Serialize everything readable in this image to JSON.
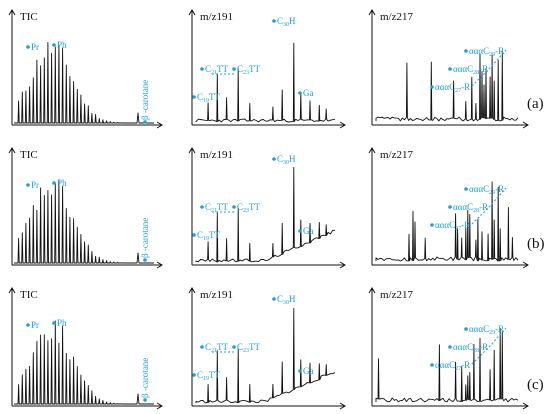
{
  "colors": {
    "annotation": "#1f9fd6",
    "trace": "#111111"
  },
  "chart_data": {
    "type": "line",
    "rows": [
      "(a)",
      "(b)",
      "(c)"
    ],
    "columns": [
      "TIC",
      "m/z191",
      "m/z217"
    ],
    "annotations": {
      "TIC": [
        "Pr",
        "Ph",
        "β-carotane"
      ],
      "m/z191": [
        "C19TT",
        "C21TT",
        "C23TT",
        "C30H",
        "Ga"
      ],
      "m/z217": [
        "αααC27-R",
        "αααC28-R",
        "αααC29-R"
      ]
    }
  },
  "rows": [
    {
      "label": "(a)",
      "panels": [
        {
          "title": "TIC",
          "peaks": [
            {
              "text": "Pr"
            },
            {
              "text": "Ph"
            },
            {
              "text": "β -carotane"
            }
          ]
        },
        {
          "title": "m/z191",
          "peaks": [
            {
              "base": "C",
              "sub": "19",
              "rest": "TT"
            },
            {
              "base": "C",
              "sub": "21",
              "rest": "TT"
            },
            {
              "base": "C",
              "sub": "23",
              "rest": "TT"
            },
            {
              "base": "C",
              "sub": "30",
              "rest": "H"
            },
            {
              "text": "Ga"
            }
          ]
        },
        {
          "title": "m/z217",
          "peaks": [
            {
              "base": "αααC",
              "sub": "29",
              "rest": "-R"
            },
            {
              "base": "αααC",
              "sub": "28",
              "rest": "-R"
            },
            {
              "base": "αααC",
              "sub": "27",
              "rest": "-R"
            }
          ]
        }
      ]
    },
    {
      "label": "(b)",
      "panels": [
        {
          "title": "TIC",
          "peaks": [
            {
              "text": "Pr"
            },
            {
              "text": "Ph"
            },
            {
              "text": "β -carotane"
            }
          ]
        },
        {
          "title": "m/z191",
          "peaks": [
            {
              "base": "C",
              "sub": "19",
              "rest": "TT"
            },
            {
              "base": "C",
              "sub": "21",
              "rest": "TT"
            },
            {
              "base": "C",
              "sub": "23",
              "rest": "TT"
            },
            {
              "base": "C",
              "sub": "30",
              "rest": "H"
            },
            {
              "text": "Ga"
            }
          ]
        },
        {
          "title": "m/z217",
          "peaks": [
            {
              "base": "αααC",
              "sub": "29",
              "rest": "-R"
            },
            {
              "base": "αααC",
              "sub": "28",
              "rest": "-R"
            },
            {
              "base": "αααC",
              "sub": "27",
              "rest": "-R"
            }
          ]
        }
      ]
    },
    {
      "label": "(c)",
      "panels": [
        {
          "title": "TIC",
          "peaks": [
            {
              "text": "Pr"
            },
            {
              "text": "Ph"
            },
            {
              "text": "β -carotane"
            }
          ]
        },
        {
          "title": "m/z191",
          "peaks": [
            {
              "base": "C",
              "sub": "19",
              "rest": "TT"
            },
            {
              "base": "C",
              "sub": "21",
              "rest": "TT"
            },
            {
              "base": "C",
              "sub": "23",
              "rest": "TT"
            },
            {
              "base": "C",
              "sub": "30",
              "rest": "H"
            },
            {
              "text": "Ga"
            }
          ]
        },
        {
          "title": "m/z217",
          "peaks": [
            {
              "base": "αααC",
              "sub": "29",
              "rest": "-R"
            },
            {
              "base": "αααC",
              "sub": "28",
              "rest": "-R"
            },
            {
              "base": "αααC",
              "sub": "27",
              "rest": "-R"
            }
          ]
        }
      ]
    }
  ]
}
